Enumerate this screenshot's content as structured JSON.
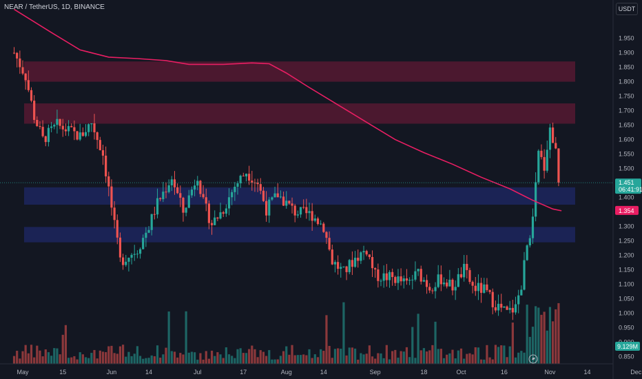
{
  "header": {
    "symbol_title": "NEAR / TetherUS, 1D, BINANCE",
    "currency": "USDT"
  },
  "colors": {
    "background": "#131722",
    "up": "#26a69a",
    "down": "#ef5350",
    "ma": "#e91e63",
    "resistance_zone": "#7a1a3a",
    "support_zone": "#1f2a6b",
    "axis_text": "#b2b5be"
  },
  "chart_data": {
    "type": "candlestick",
    "y_axis": {
      "min": 0.825,
      "max": 2.03,
      "ticks": [
        "1.950",
        "1.900",
        "1.850",
        "1.800",
        "1.750",
        "1.700",
        "1.650",
        "1.600",
        "1.550",
        "1.500",
        "1.450",
        "1.400",
        "1.350",
        "1.300",
        "1.250",
        "1.200",
        "1.150",
        "1.100",
        "1.050",
        "1.000",
        "0.950",
        "0.900",
        "0.850"
      ]
    },
    "x_axis": {
      "tick_labels": [
        {
          "label": "May",
          "day": 0
        },
        {
          "label": "15",
          "day": 14
        },
        {
          "label": "Jun",
          "day": 31
        },
        {
          "label": "14",
          "day": 44
        },
        {
          "label": "Jul",
          "day": 61
        },
        {
          "label": "17",
          "day": 77
        },
        {
          "label": "Aug",
          "day": 92
        },
        {
          "label": "14",
          "day": 105
        },
        {
          "label": "Sep",
          "day": 123
        },
        {
          "label": "18",
          "day": 140
        },
        {
          "label": "Oct",
          "day": 153
        },
        {
          "label": "16",
          "day": 168
        },
        {
          "label": "Nov",
          "day": 184
        },
        {
          "label": "14",
          "day": 197
        },
        {
          "label": "Dec",
          "day": 214
        }
      ]
    },
    "zones": [
      {
        "kind": "resistance",
        "from": 1.8,
        "to": 1.87
      },
      {
        "kind": "resistance",
        "from": 1.655,
        "to": 1.725
      },
      {
        "kind": "support",
        "from": 1.375,
        "to": 1.435
      },
      {
        "kind": "support",
        "from": 1.245,
        "to": 1.298
      }
    ],
    "anchors": [
      {
        "day": -3,
        "price": 1.9
      },
      {
        "day": 1,
        "price": 1.82
      },
      {
        "day": 4,
        "price": 1.68
      },
      {
        "day": 7,
        "price": 1.6
      },
      {
        "day": 12,
        "price": 1.65
      },
      {
        "day": 16,
        "price": 1.63
      },
      {
        "day": 20,
        "price": 1.61
      },
      {
        "day": 24,
        "price": 1.66
      },
      {
        "day": 28,
        "price": 1.55
      },
      {
        "day": 30,
        "price": 1.43
      },
      {
        "day": 32,
        "price": 1.3
      },
      {
        "day": 34,
        "price": 1.18
      },
      {
        "day": 40,
        "price": 1.22
      },
      {
        "day": 44,
        "price": 1.3
      },
      {
        "day": 47,
        "price": 1.38
      },
      {
        "day": 52,
        "price": 1.47
      },
      {
        "day": 56,
        "price": 1.35
      },
      {
        "day": 61,
        "price": 1.48
      },
      {
        "day": 63,
        "price": 1.38
      },
      {
        "day": 66,
        "price": 1.31
      },
      {
        "day": 70,
        "price": 1.36
      },
      {
        "day": 74,
        "price": 1.44
      },
      {
        "day": 78,
        "price": 1.49
      },
      {
        "day": 82,
        "price": 1.45
      },
      {
        "day": 85,
        "price": 1.36
      },
      {
        "day": 89,
        "price": 1.41
      },
      {
        "day": 95,
        "price": 1.35
      },
      {
        "day": 101,
        "price": 1.34
      },
      {
        "day": 105,
        "price": 1.3
      },
      {
        "day": 108,
        "price": 1.18
      },
      {
        "day": 112,
        "price": 1.14
      },
      {
        "day": 116,
        "price": 1.19
      },
      {
        "day": 120,
        "price": 1.22
      },
      {
        "day": 123,
        "price": 1.13
      },
      {
        "day": 130,
        "price": 1.12
      },
      {
        "day": 134,
        "price": 1.1
      },
      {
        "day": 138,
        "price": 1.14
      },
      {
        "day": 142,
        "price": 1.09
      },
      {
        "day": 146,
        "price": 1.12
      },
      {
        "day": 150,
        "price": 1.09
      },
      {
        "day": 154,
        "price": 1.15
      },
      {
        "day": 157,
        "price": 1.09
      },
      {
        "day": 161,
        "price": 1.08
      },
      {
        "day": 165,
        "price": 1.03
      },
      {
        "day": 169,
        "price": 1.0
      },
      {
        "day": 172,
        "price": 1.02
      },
      {
        "day": 174,
        "price": 1.1
      },
      {
        "day": 176,
        "price": 1.23
      },
      {
        "day": 178,
        "price": 1.32
      },
      {
        "day": 180,
        "price": 1.55
      },
      {
        "day": 182,
        "price": 1.51
      },
      {
        "day": 184,
        "price": 1.64
      },
      {
        "day": 186,
        "price": 1.56
      },
      {
        "day": 187,
        "price": 1.451
      }
    ],
    "candle_count": 191,
    "moving_average": [
      {
        "day": -3,
        "price": 2.05
      },
      {
        "day": 10,
        "price": 1.97
      },
      {
        "day": 20,
        "price": 1.91
      },
      {
        "day": 30,
        "price": 1.885
      },
      {
        "day": 40,
        "price": 1.88
      },
      {
        "day": 50,
        "price": 1.873
      },
      {
        "day": 58,
        "price": 1.86
      },
      {
        "day": 70,
        "price": 1.86
      },
      {
        "day": 80,
        "price": 1.865
      },
      {
        "day": 86,
        "price": 1.862
      },
      {
        "day": 92,
        "price": 1.83
      },
      {
        "day": 100,
        "price": 1.78
      },
      {
        "day": 110,
        "price": 1.72
      },
      {
        "day": 120,
        "price": 1.66
      },
      {
        "day": 130,
        "price": 1.6
      },
      {
        "day": 140,
        "price": 1.555
      },
      {
        "day": 150,
        "price": 1.515
      },
      {
        "day": 160,
        "price": 1.47
      },
      {
        "day": 170,
        "price": 1.43
      },
      {
        "day": 178,
        "price": 1.39
      },
      {
        "day": 185,
        "price": 1.36
      },
      {
        "day": 188,
        "price": 1.354
      }
    ],
    "last_price": {
      "value": "1.451",
      "countdown": "06:41:91"
    },
    "ma_value": "1.354",
    "volume_value": "9.129M"
  }
}
